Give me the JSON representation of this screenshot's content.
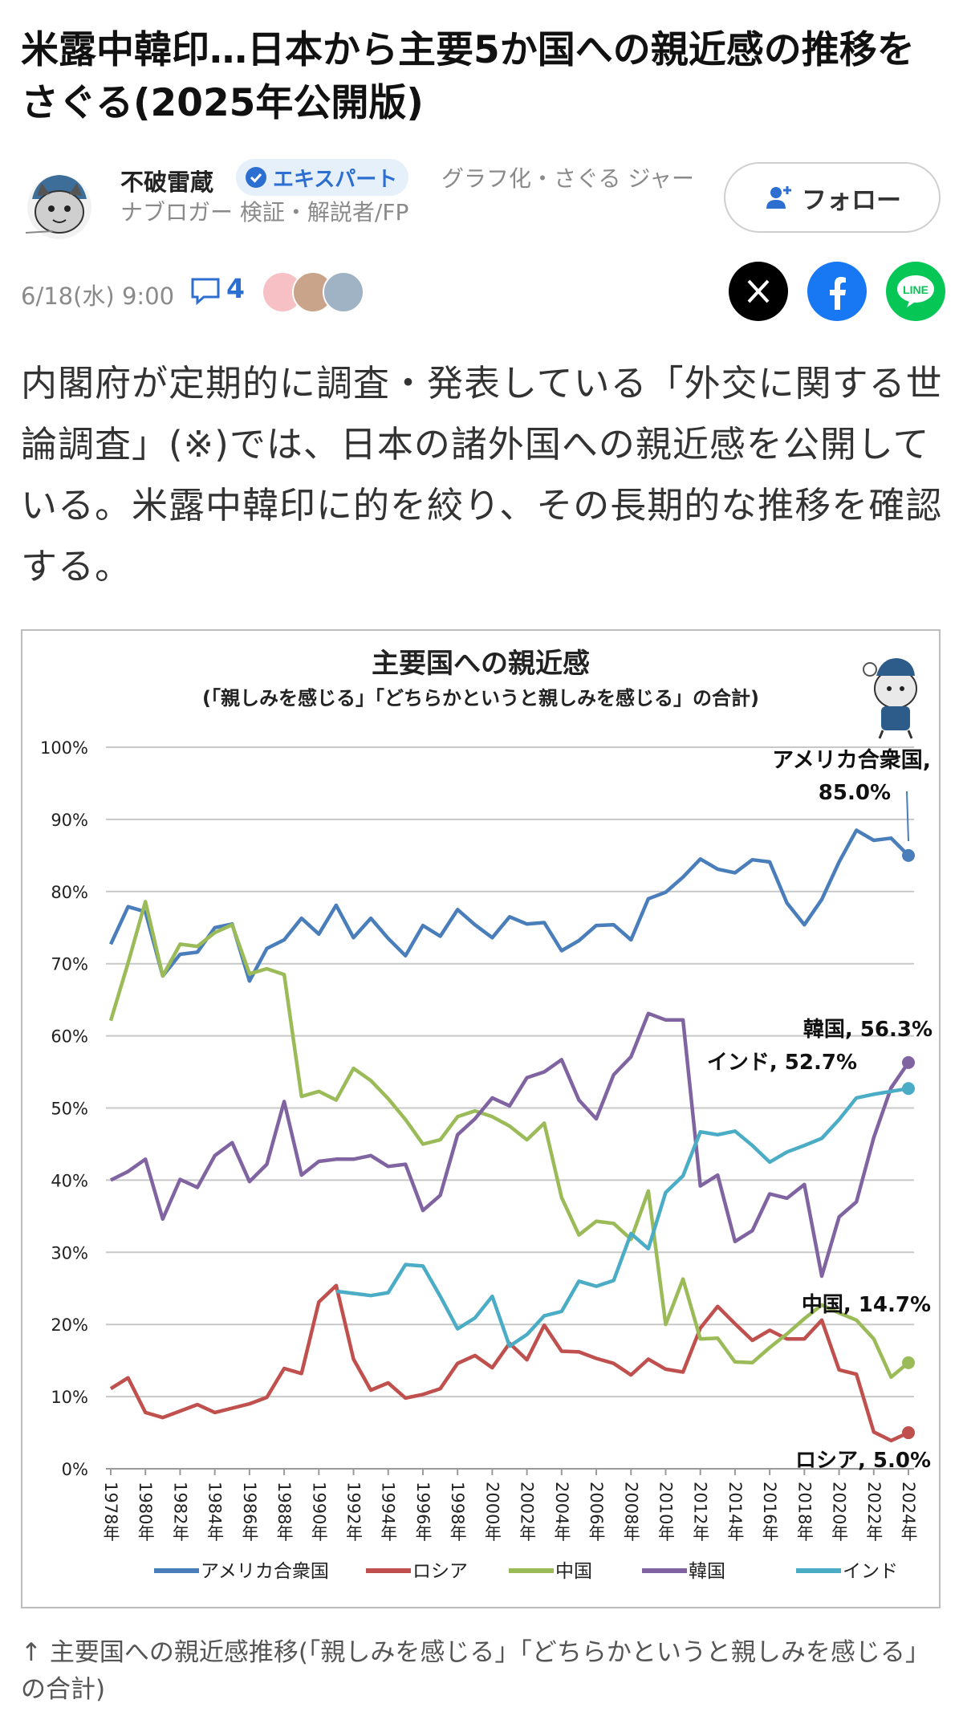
{
  "article": {
    "title": "米露中韓印…日本から主要5か国への親近感の推移をさぐる(2025年公開版)",
    "author_name": "不破雷蔵",
    "badge": "エキスパート",
    "author_desc": "グラフ化・さぐる ジャーナブロガー 検証・解説者/FP",
    "follow_label": "フォロー",
    "date": "6/18(水) 9:00",
    "comment_count": "4",
    "lead": "内閣府が定期的に調査・発表している「外交に関する世論調査」(※)では、日本の諸外国への親近感を公開している。米露中韓印に的を絞り、その長期的な推移を確認する。",
    "caption": "↑ 主要国への親近感推移(「親しみを感じる」「どちらかというと親しみを感じる」の合計)"
  },
  "share": {
    "x_color": "#000000",
    "facebook_color": "#1877f2",
    "line_color": "#06c755",
    "line_label": "LINE"
  },
  "colors": {
    "accent": "#2d6fd1"
  },
  "icons": [
    "check-badge-icon",
    "follow-plus-icon",
    "comment-icon",
    "x-logo-icon",
    "facebook-logo-icon",
    "line-logo-icon"
  ],
  "chart_data": {
    "type": "line",
    "title": "主要国への親近感",
    "subtitle": "(「親しみを感じる」「どちらかというと親しみを感じる」の合計)",
    "ylim": [
      0,
      100
    ],
    "yticks": [
      "0%",
      "10%",
      "20%",
      "30%",
      "40%",
      "50%",
      "60%",
      "70%",
      "80%",
      "90%",
      "100%"
    ],
    "xlim": [
      1978,
      2024
    ],
    "xticks": [
      "1978年",
      "1980年",
      "1982年",
      "1984年",
      "1986年",
      "1988年",
      "1990年",
      "1992年",
      "1994年",
      "1996年",
      "1998年",
      "2000年",
      "2002年",
      "2004年",
      "2006年",
      "2008年",
      "2010年",
      "2012年",
      "2014年",
      "2016年",
      "2018年",
      "2020年",
      "2022年",
      "2024年"
    ],
    "grid": true,
    "legend_position": "bottom",
    "series": [
      {
        "name": "アメリカ合衆国",
        "color": "#4a7ebb",
        "label": "アメリカ合衆国, 85.0%",
        "points": [
          [
            1978,
            72.7
          ],
          [
            1979,
            77.9
          ],
          [
            1980,
            77.2
          ],
          [
            1981,
            68.3
          ],
          [
            1982,
            71.3
          ],
          [
            1983,
            71.6
          ],
          [
            1984,
            75.0
          ],
          [
            1985,
            75.5
          ],
          [
            1986,
            67.6
          ],
          [
            1987,
            72.1
          ],
          [
            1988,
            73.3
          ],
          [
            1989,
            76.3
          ],
          [
            1990,
            74.1
          ],
          [
            1991,
            78.1
          ],
          [
            1992,
            73.6
          ],
          [
            1993,
            76.3
          ],
          [
            1994,
            73.5
          ],
          [
            1995,
            71.1
          ],
          [
            1996,
            75.3
          ],
          [
            1997,
            73.8
          ],
          [
            1998,
            77.5
          ],
          [
            1999,
            75.4
          ],
          [
            2000,
            73.6
          ],
          [
            2001,
            76.5
          ],
          [
            2002,
            75.5
          ],
          [
            2003,
            75.7
          ],
          [
            2004,
            71.8
          ],
          [
            2005,
            73.2
          ],
          [
            2006,
            75.3
          ],
          [
            2007,
            75.4
          ],
          [
            2008,
            73.3
          ],
          [
            2009,
            79.0
          ],
          [
            2010,
            79.9
          ],
          [
            2011,
            82.0
          ],
          [
            2012,
            84.5
          ],
          [
            2013,
            83.1
          ],
          [
            2014,
            82.6
          ],
          [
            2015,
            84.4
          ],
          [
            2016,
            84.1
          ],
          [
            2017,
            78.4
          ],
          [
            2018,
            75.4
          ],
          [
            2019,
            78.9
          ],
          [
            2020,
            84.1
          ],
          [
            2021,
            88.5
          ],
          [
            2022,
            87.1
          ],
          [
            2023,
            87.4
          ],
          [
            2024,
            85.0
          ]
        ]
      },
      {
        "name": "ロシア",
        "color": "#c0504d",
        "label": "ロシア, 5.0%",
        "points": [
          [
            1978,
            11.1
          ],
          [
            1979,
            12.6
          ],
          [
            1980,
            7.8
          ],
          [
            1981,
            7.1
          ],
          [
            1982,
            8.0
          ],
          [
            1983,
            8.9
          ],
          [
            1984,
            7.8
          ],
          [
            1985,
            8.4
          ],
          [
            1986,
            9.0
          ],
          [
            1987,
            9.9
          ],
          [
            1988,
            13.9
          ],
          [
            1989,
            13.2
          ],
          [
            1990,
            23.1
          ],
          [
            1991,
            25.4
          ],
          [
            1992,
            15.2
          ],
          [
            1993,
            10.9
          ],
          [
            1994,
            11.9
          ],
          [
            1995,
            9.8
          ],
          [
            1996,
            10.3
          ],
          [
            1997,
            11.1
          ],
          [
            1998,
            14.6
          ],
          [
            1999,
            15.7
          ],
          [
            2000,
            14.0
          ],
          [
            2001,
            17.4
          ],
          [
            2002,
            15.1
          ],
          [
            2003,
            19.9
          ],
          [
            2004,
            16.3
          ],
          [
            2005,
            16.2
          ],
          [
            2006,
            15.3
          ],
          [
            2007,
            14.6
          ],
          [
            2008,
            13.0
          ],
          [
            2009,
            15.2
          ],
          [
            2010,
            13.8
          ],
          [
            2011,
            13.4
          ],
          [
            2012,
            19.5
          ],
          [
            2013,
            22.5
          ],
          [
            2014,
            20.1
          ],
          [
            2015,
            17.8
          ],
          [
            2016,
            19.2
          ],
          [
            2017,
            18.0
          ],
          [
            2018,
            18.0
          ],
          [
            2019,
            20.6
          ],
          [
            2020,
            13.7
          ],
          [
            2021,
            13.1
          ],
          [
            2022,
            5.1
          ],
          [
            2023,
            3.9
          ],
          [
            2024,
            5.0
          ]
        ]
      },
      {
        "name": "中国",
        "color": "#9bbb59",
        "label": "中国, 14.7%",
        "points": [
          [
            1978,
            62.1
          ],
          [
            1979,
            70.1
          ],
          [
            1980,
            78.6
          ],
          [
            1981,
            68.3
          ],
          [
            1982,
            72.7
          ],
          [
            1983,
            72.4
          ],
          [
            1984,
            74.3
          ],
          [
            1985,
            75.4
          ],
          [
            1986,
            68.6
          ],
          [
            1987,
            69.3
          ],
          [
            1988,
            68.5
          ],
          [
            1989,
            51.6
          ],
          [
            1990,
            52.3
          ],
          [
            1991,
            51.1
          ],
          [
            1992,
            55.5
          ],
          [
            1993,
            53.8
          ],
          [
            1994,
            51.3
          ],
          [
            1995,
            48.4
          ],
          [
            1996,
            45.0
          ],
          [
            1997,
            45.6
          ],
          [
            1998,
            48.8
          ],
          [
            1999,
            49.6
          ],
          [
            2000,
            48.8
          ],
          [
            2001,
            47.5
          ],
          [
            2002,
            45.6
          ],
          [
            2003,
            47.9
          ],
          [
            2004,
            37.6
          ],
          [
            2005,
            32.4
          ],
          [
            2006,
            34.3
          ],
          [
            2007,
            34.0
          ],
          [
            2008,
            31.8
          ],
          [
            2009,
            38.5
          ],
          [
            2010,
            20.0
          ],
          [
            2011,
            26.3
          ],
          [
            2012,
            18.0
          ],
          [
            2013,
            18.1
          ],
          [
            2014,
            14.8
          ],
          [
            2015,
            14.7
          ],
          [
            2016,
            16.8
          ],
          [
            2017,
            18.7
          ],
          [
            2018,
            20.8
          ],
          [
            2019,
            22.7
          ],
          [
            2020,
            21.6
          ],
          [
            2021,
            20.6
          ],
          [
            2022,
            18.0
          ],
          [
            2023,
            12.7
          ],
          [
            2024,
            14.7
          ]
        ]
      },
      {
        "name": "韓国",
        "color": "#8064a2",
        "label": "韓国, 56.3%",
        "points": [
          [
            1978,
            40.0
          ],
          [
            1979,
            41.2
          ],
          [
            1980,
            42.9
          ],
          [
            1981,
            34.6
          ],
          [
            1982,
            40.1
          ],
          [
            1983,
            39.0
          ],
          [
            1984,
            43.4
          ],
          [
            1985,
            45.2
          ],
          [
            1986,
            39.8
          ],
          [
            1987,
            42.2
          ],
          [
            1988,
            50.9
          ],
          [
            1989,
            40.7
          ],
          [
            1990,
            42.6
          ],
          [
            1991,
            42.9
          ],
          [
            1992,
            42.9
          ],
          [
            1993,
            43.4
          ],
          [
            1994,
            41.9
          ],
          [
            1995,
            42.2
          ],
          [
            1996,
            35.8
          ],
          [
            1997,
            37.9
          ],
          [
            1998,
            46.3
          ],
          [
            1999,
            48.5
          ],
          [
            2000,
            51.4
          ],
          [
            2001,
            50.3
          ],
          [
            2002,
            54.2
          ],
          [
            2003,
            55.0
          ],
          [
            2004,
            56.7
          ],
          [
            2005,
            51.1
          ],
          [
            2006,
            48.5
          ],
          [
            2007,
            54.6
          ],
          [
            2008,
            57.1
          ],
          [
            2009,
            63.1
          ],
          [
            2010,
            62.2
          ],
          [
            2011,
            62.2
          ],
          [
            2012,
            39.2
          ],
          [
            2013,
            40.7
          ],
          [
            2014,
            31.5
          ],
          [
            2015,
            33.0
          ],
          [
            2016,
            38.1
          ],
          [
            2017,
            37.5
          ],
          [
            2018,
            39.4
          ],
          [
            2019,
            26.7
          ],
          [
            2020,
            34.9
          ],
          [
            2021,
            37.0
          ],
          [
            2022,
            45.9
          ],
          [
            2023,
            52.8
          ],
          [
            2024,
            56.3
          ]
        ]
      },
      {
        "name": "インド",
        "color": "#4bacc6",
        "label": "インド, 52.7%",
        "points": [
          [
            1991,
            24.6
          ],
          [
            1992,
            24.3
          ],
          [
            1993,
            24.0
          ],
          [
            1994,
            24.4
          ],
          [
            1995,
            28.3
          ],
          [
            1996,
            28.1
          ],
          [
            1997,
            23.9
          ],
          [
            1998,
            19.4
          ],
          [
            1999,
            20.9
          ],
          [
            2000,
            23.9
          ],
          [
            2001,
            17.0
          ],
          [
            2002,
            18.6
          ],
          [
            2003,
            21.2
          ],
          [
            2004,
            21.8
          ],
          [
            2005,
            26.0
          ],
          [
            2006,
            25.3
          ],
          [
            2007,
            26.1
          ],
          [
            2008,
            32.6
          ],
          [
            2009,
            30.5
          ],
          [
            2010,
            38.3
          ],
          [
            2011,
            40.6
          ],
          [
            2012,
            46.7
          ],
          [
            2013,
            46.3
          ],
          [
            2014,
            46.8
          ],
          [
            2015,
            44.8
          ],
          [
            2016,
            42.5
          ],
          [
            2017,
            43.9
          ],
          [
            2018,
            44.8
          ],
          [
            2019,
            45.8
          ],
          [
            2020,
            48.4
          ],
          [
            2021,
            51.4
          ],
          [
            2022,
            51.9
          ],
          [
            2023,
            52.3
          ],
          [
            2024,
            52.7
          ]
        ]
      }
    ]
  }
}
